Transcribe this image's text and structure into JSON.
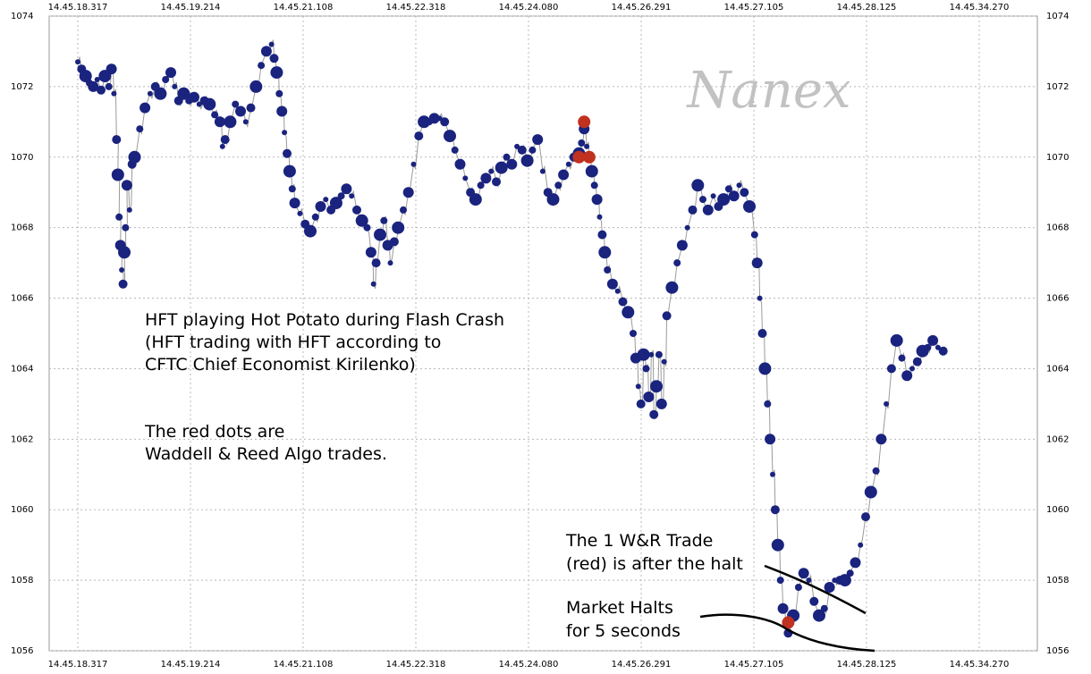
{
  "chart_data": {
    "type": "scatter",
    "title": "",
    "xlabel": "",
    "ylabel": "",
    "watermark": "Nanex",
    "x_tick_labels": [
      "14.45.18.317",
      "14.45.19.214",
      "14.45.21.108",
      "14.45.22.318",
      "14.45.24.080",
      "14.45.26.291",
      "14.45.27.105",
      "14.45.28.125",
      "14.45.34.270"
    ],
    "ylim": [
      1056,
      1074
    ],
    "y_ticks": [
      1056,
      1058,
      1060,
      1062,
      1064,
      1066,
      1068,
      1070,
      1072,
      1074
    ],
    "grid": true,
    "colors": {
      "hft": "#1a237e",
      "wr": "#c0311f",
      "line": "#9a9a9a",
      "grid": "#b8b8b8"
    },
    "annotations": [
      {
        "id": "hft-note",
        "lines": [
          "HFT playing Hot Potato during Flash Crash",
          "(HFT trading with HFT according to",
          "CFTC Chief Economist Kirilenko)"
        ]
      },
      {
        "id": "red-note",
        "lines": [
          "The red dots are",
          "Waddell & Reed Algo trades."
        ]
      },
      {
        "id": "wr-trade-note",
        "lines": [
          "The 1 W&R Trade",
          "(red) is after the halt"
        ]
      },
      {
        "id": "halt-note",
        "lines": [
          "Market Halts",
          "for 5 seconds"
        ]
      }
    ],
    "series": [
      {
        "role": "hft-trades",
        "x_index_start": 0,
        "x_index_end": 8.85,
        "points": [
          [
            0.0,
            1072.7
          ],
          [
            0.03,
            1072.5
          ],
          [
            0.06,
            1072.3
          ],
          [
            0.09,
            1072.1
          ],
          [
            0.12,
            1072.0
          ],
          [
            0.15,
            1072.2
          ],
          [
            0.18,
            1071.9
          ],
          [
            0.21,
            1072.3
          ],
          [
            0.24,
            1072.0
          ],
          [
            0.26,
            1072.5
          ],
          [
            0.28,
            1071.8
          ],
          [
            0.3,
            1070.5
          ],
          [
            0.31,
            1069.5
          ],
          [
            0.32,
            1068.3
          ],
          [
            0.33,
            1067.5
          ],
          [
            0.34,
            1066.8
          ],
          [
            0.35,
            1066.4
          ],
          [
            0.36,
            1067.3
          ],
          [
            0.37,
            1068.0
          ],
          [
            0.38,
            1069.2
          ],
          [
            0.4,
            1068.5
          ],
          [
            0.42,
            1069.8
          ],
          [
            0.44,
            1070.0
          ],
          [
            0.48,
            1070.8
          ],
          [
            0.52,
            1071.4
          ],
          [
            0.56,
            1071.8
          ],
          [
            0.6,
            1072.0
          ],
          [
            0.64,
            1071.8
          ],
          [
            0.68,
            1072.2
          ],
          [
            0.72,
            1072.4
          ],
          [
            0.75,
            1072.0
          ],
          [
            0.78,
            1071.6
          ],
          [
            0.82,
            1071.8
          ],
          [
            0.86,
            1071.6
          ],
          [
            0.9,
            1071.7
          ],
          [
            0.94,
            1071.5
          ],
          [
            0.98,
            1071.6
          ],
          [
            1.02,
            1071.5
          ],
          [
            1.06,
            1071.2
          ],
          [
            1.1,
            1071.0
          ],
          [
            1.12,
            1070.3
          ],
          [
            1.14,
            1070.5
          ],
          [
            1.18,
            1071.0
          ],
          [
            1.22,
            1071.5
          ],
          [
            1.26,
            1071.3
          ],
          [
            1.3,
            1071.0
          ],
          [
            1.34,
            1071.4
          ],
          [
            1.38,
            1072.0
          ],
          [
            1.42,
            1072.6
          ],
          [
            1.46,
            1073.0
          ],
          [
            1.5,
            1073.2
          ],
          [
            1.52,
            1072.8
          ],
          [
            1.54,
            1072.4
          ],
          [
            1.56,
            1071.8
          ],
          [
            1.58,
            1071.3
          ],
          [
            1.6,
            1070.7
          ],
          [
            1.62,
            1070.1
          ],
          [
            1.64,
            1069.6
          ],
          [
            1.66,
            1069.1
          ],
          [
            1.68,
            1068.7
          ],
          [
            1.72,
            1068.4
          ],
          [
            1.76,
            1068.1
          ],
          [
            1.8,
            1067.9
          ],
          [
            1.84,
            1068.3
          ],
          [
            1.88,
            1068.6
          ],
          [
            1.92,
            1068.8
          ],
          [
            1.96,
            1068.5
          ],
          [
            2.0,
            1068.7
          ],
          [
            2.04,
            1068.9
          ],
          [
            2.08,
            1069.1
          ],
          [
            2.12,
            1068.9
          ],
          [
            2.16,
            1068.5
          ],
          [
            2.2,
            1068.2
          ],
          [
            2.24,
            1068.0
          ],
          [
            2.27,
            1067.3
          ],
          [
            2.29,
            1066.4
          ],
          [
            2.31,
            1067.0
          ],
          [
            2.34,
            1067.8
          ],
          [
            2.37,
            1068.2
          ],
          [
            2.4,
            1067.5
          ],
          [
            2.42,
            1067.0
          ],
          [
            2.45,
            1067.6
          ],
          [
            2.48,
            1068.0
          ],
          [
            2.52,
            1068.5
          ],
          [
            2.56,
            1069.0
          ],
          [
            2.6,
            1069.8
          ],
          [
            2.64,
            1070.6
          ],
          [
            2.68,
            1071.0
          ],
          [
            2.72,
            1071.0
          ],
          [
            2.76,
            1071.1
          ],
          [
            2.8,
            1071.1
          ],
          [
            2.84,
            1071.0
          ],
          [
            2.88,
            1070.6
          ],
          [
            2.92,
            1070.2
          ],
          [
            2.96,
            1069.8
          ],
          [
            3.0,
            1069.4
          ],
          [
            3.04,
            1069.0
          ],
          [
            3.08,
            1068.8
          ],
          [
            3.12,
            1069.2
          ],
          [
            3.16,
            1069.4
          ],
          [
            3.2,
            1069.6
          ],
          [
            3.24,
            1069.3
          ],
          [
            3.28,
            1069.7
          ],
          [
            3.32,
            1070.0
          ],
          [
            3.36,
            1069.8
          ],
          [
            3.4,
            1070.3
          ],
          [
            3.44,
            1070.2
          ],
          [
            3.48,
            1069.9
          ],
          [
            3.52,
            1070.2
          ],
          [
            3.56,
            1070.5
          ],
          [
            3.6,
            1069.6
          ],
          [
            3.64,
            1069.0
          ],
          [
            3.68,
            1068.8
          ],
          [
            3.72,
            1069.2
          ],
          [
            3.76,
            1069.5
          ],
          [
            3.8,
            1069.8
          ],
          [
            3.84,
            1070.0
          ],
          [
            3.88,
            1070.1
          ],
          [
            3.9,
            1070.4
          ],
          [
            3.92,
            1070.8
          ],
          [
            3.94,
            1070.3
          ],
          [
            3.96,
            1070.0
          ],
          [
            3.98,
            1069.6
          ],
          [
            4.0,
            1069.2
          ],
          [
            4.02,
            1068.8
          ],
          [
            4.04,
            1068.3
          ],
          [
            4.06,
            1067.8
          ],
          [
            4.08,
            1067.3
          ],
          [
            4.1,
            1066.8
          ],
          [
            4.14,
            1066.4
          ],
          [
            4.18,
            1066.2
          ],
          [
            4.22,
            1065.9
          ],
          [
            4.26,
            1065.6
          ],
          [
            4.3,
            1065.0
          ],
          [
            4.32,
            1064.3
          ],
          [
            4.34,
            1063.5
          ],
          [
            4.36,
            1063.0
          ],
          [
            4.38,
            1064.4
          ],
          [
            4.4,
            1064.0
          ],
          [
            4.42,
            1063.2
          ],
          [
            4.44,
            1064.4
          ],
          [
            4.46,
            1062.7
          ],
          [
            4.48,
            1063.5
          ],
          [
            4.5,
            1064.4
          ],
          [
            4.52,
            1063.0
          ],
          [
            4.54,
            1064.2
          ],
          [
            4.56,
            1065.5
          ],
          [
            4.6,
            1066.3
          ],
          [
            4.64,
            1067.0
          ],
          [
            4.68,
            1067.5
          ],
          [
            4.72,
            1068.0
          ],
          [
            4.76,
            1068.5
          ],
          [
            4.8,
            1069.2
          ],
          [
            4.84,
            1068.8
          ],
          [
            4.88,
            1068.5
          ],
          [
            4.92,
            1068.9
          ],
          [
            4.96,
            1068.6
          ],
          [
            5.0,
            1068.8
          ],
          [
            5.04,
            1069.1
          ],
          [
            5.08,
            1068.9
          ],
          [
            5.12,
            1069.2
          ],
          [
            5.16,
            1069.0
          ],
          [
            5.2,
            1068.6
          ],
          [
            5.24,
            1067.8
          ],
          [
            5.26,
            1067.0
          ],
          [
            5.28,
            1066.0
          ],
          [
            5.3,
            1065.0
          ],
          [
            5.32,
            1064.0
          ],
          [
            5.34,
            1063.0
          ],
          [
            5.36,
            1062.0
          ],
          [
            5.38,
            1061.0
          ],
          [
            5.4,
            1060.0
          ],
          [
            5.42,
            1059.0
          ],
          [
            5.44,
            1058.0
          ],
          [
            5.46,
            1057.2
          ],
          [
            5.48,
            1056.8
          ],
          [
            5.5,
            1056.5
          ],
          [
            5.54,
            1057.0
          ],
          [
            5.58,
            1057.8
          ],
          [
            5.62,
            1058.2
          ],
          [
            5.66,
            1058.0
          ],
          [
            5.7,
            1057.4
          ],
          [
            5.74,
            1057.0
          ],
          [
            5.78,
            1057.2
          ],
          [
            5.82,
            1057.8
          ],
          [
            5.86,
            1058.0
          ],
          [
            5.9,
            1058.0
          ],
          [
            5.94,
            1058.0
          ],
          [
            5.98,
            1058.2
          ],
          [
            6.02,
            1058.5
          ],
          [
            6.06,
            1059.0
          ],
          [
            6.1,
            1059.8
          ],
          [
            6.14,
            1060.5
          ],
          [
            6.18,
            1061.1
          ],
          [
            6.22,
            1062.0
          ],
          [
            6.26,
            1063.0
          ],
          [
            6.3,
            1064.0
          ],
          [
            6.34,
            1064.8
          ],
          [
            6.38,
            1064.3
          ],
          [
            6.42,
            1063.8
          ],
          [
            6.46,
            1064.0
          ],
          [
            6.5,
            1064.2
          ],
          [
            6.54,
            1064.5
          ],
          [
            6.58,
            1064.6
          ],
          [
            6.62,
            1064.8
          ],
          [
            6.66,
            1064.6
          ],
          [
            6.7,
            1064.5
          ]
        ]
      },
      {
        "role": "waddell-reed-trades",
        "points": [
          [
            3.88,
            1070.0
          ],
          [
            3.92,
            1071.0
          ],
          [
            3.96,
            1070.0
          ],
          [
            5.5,
            1056.8
          ]
        ]
      }
    ]
  }
}
